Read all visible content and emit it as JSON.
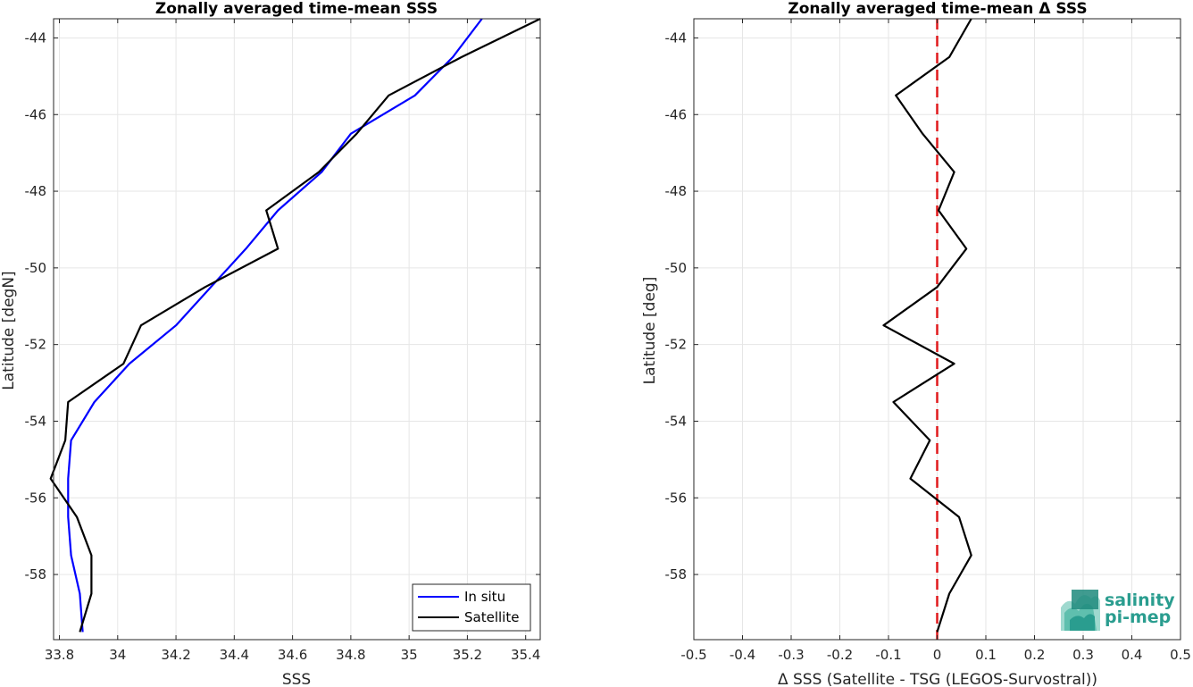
{
  "colors": {
    "in_situ": "#0000ff",
    "satellite": "#000000",
    "zero_line": "#e0191c",
    "grid": "#e6e6e6",
    "logo": "#2a9d8f"
  },
  "logo": {
    "line1": "salinity",
    "line2": "pi-mep"
  },
  "chart_data": [
    {
      "type": "line",
      "title": "Zonally averaged time-mean SSS",
      "xlabel": "SSS",
      "ylabel": "Latitude [degN]",
      "xlim": [
        33.78,
        35.45
      ],
      "ylim": [
        -59.7,
        -43.5
      ],
      "xticks": [
        33.8,
        34,
        34.2,
        34.4,
        34.6,
        34.8,
        35,
        35.2,
        35.4
      ],
      "xtick_labels": [
        "33.8",
        "34",
        "34.2",
        "34.4",
        "34.6",
        "34.8",
        "35",
        "35.2",
        "35.4"
      ],
      "yticks": [
        -58,
        -56,
        -54,
        -52,
        -50,
        -48,
        -46,
        -44
      ],
      "ytick_labels": [
        "-58",
        "-56",
        "-54",
        "-52",
        "-50",
        "-48",
        "-46",
        "-44"
      ],
      "grid": true,
      "legend_position": "bottom-right",
      "legend_entries": [
        "In situ",
        "Satellite"
      ],
      "series": [
        {
          "name": "In situ",
          "color": "#0000ff",
          "x": [
            35.25,
            35.15,
            35.02,
            34.8,
            34.7,
            34.55,
            34.44,
            34.32,
            34.2,
            34.04,
            33.92,
            33.84,
            33.83,
            33.83,
            33.84,
            33.87,
            33.88
          ],
          "y": [
            -43.5,
            -44.5,
            -45.5,
            -46.5,
            -47.5,
            -48.5,
            -49.5,
            -50.5,
            -51.5,
            -52.5,
            -53.5,
            -54.5,
            -55.5,
            -56.5,
            -57.5,
            -58.5,
            -59.5
          ]
        },
        {
          "name": "Satellite",
          "color": "#000000",
          "x": [
            35.45,
            35.18,
            34.93,
            34.82,
            34.69,
            34.51,
            34.55,
            34.3,
            34.08,
            34.02,
            33.83,
            33.82,
            33.77,
            33.86,
            33.91,
            33.91,
            33.87
          ],
          "y": [
            -43.5,
            -44.5,
            -45.5,
            -46.5,
            -47.5,
            -48.5,
            -49.5,
            -50.5,
            -51.5,
            -52.5,
            -53.5,
            -54.5,
            -55.5,
            -56.5,
            -57.5,
            -58.5,
            -59.5
          ]
        }
      ]
    },
    {
      "type": "line",
      "title": "Zonally averaged time-mean Δ SSS",
      "xlabel": "Δ SSS (Satellite - TSG (LEGOS-Survostral))",
      "ylabel": "Latitude [deg]",
      "xlim": [
        -0.5,
        0.5
      ],
      "ylim": [
        -59.7,
        -43.5
      ],
      "xticks": [
        -0.5,
        -0.4,
        -0.3,
        -0.2,
        -0.1,
        0,
        0.1,
        0.2,
        0.3,
        0.4,
        0.5
      ],
      "xtick_labels": [
        "-0.5",
        "-0.4",
        "-0.3",
        "-0.2",
        "-0.1",
        "0",
        "0.1",
        "0.2",
        "0.3",
        "0.4",
        "0.5"
      ],
      "yticks": [
        -58,
        -56,
        -54,
        -52,
        -50,
        -48,
        -46,
        -44
      ],
      "ytick_labels": [
        "-58",
        "-56",
        "-54",
        "-52",
        "-50",
        "-48",
        "-46",
        "-44"
      ],
      "grid": true,
      "reference_line": {
        "x": 0,
        "style": "dashed",
        "color": "#e0191c"
      },
      "series": [
        {
          "name": "",
          "color": "#000000",
          "x": [
            0.07,
            0.025,
            -0.085,
            -0.03,
            0.035,
            0.003,
            0.06,
            0.0,
            -0.11,
            0.035,
            -0.09,
            -0.015,
            -0.055,
            0.045,
            0.07,
            0.025,
            0.0
          ],
          "y": [
            -43.5,
            -44.5,
            -45.5,
            -46.5,
            -47.5,
            -48.5,
            -49.5,
            -50.5,
            -51.5,
            -52.5,
            -53.5,
            -54.5,
            -55.5,
            -56.5,
            -57.5,
            -58.5,
            -59.5
          ]
        }
      ]
    }
  ]
}
